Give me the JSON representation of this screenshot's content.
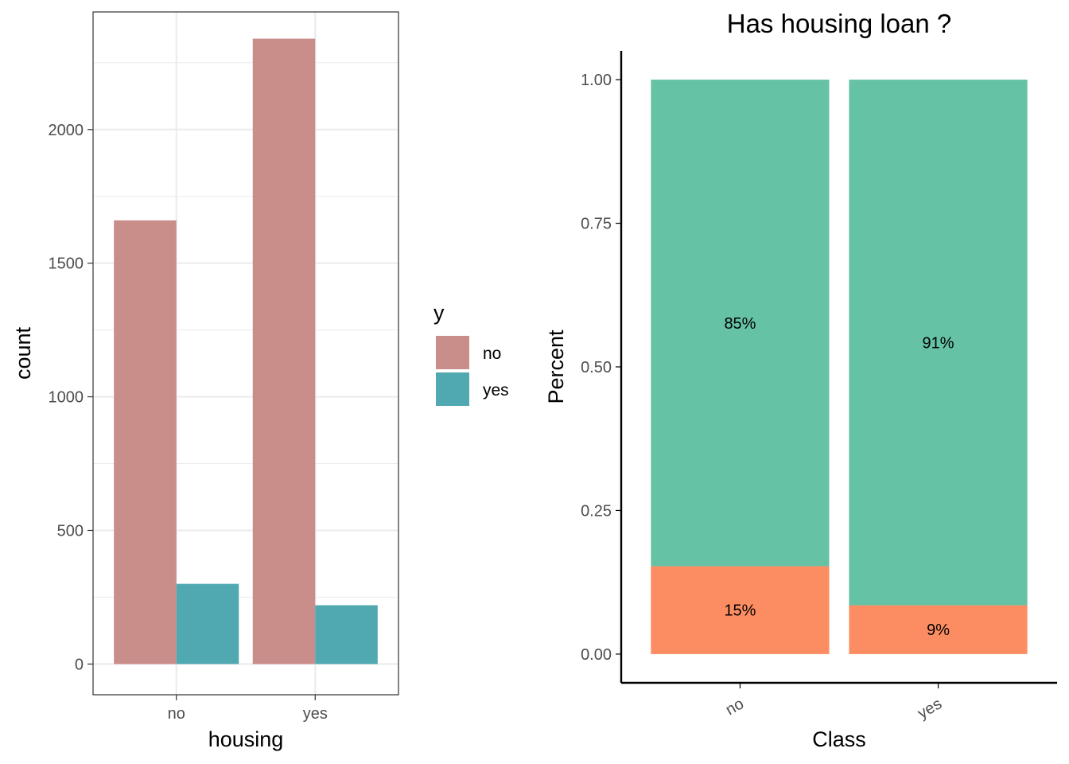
{
  "chart_data": [
    {
      "type": "bar",
      "position": "dodge",
      "xlabel": "housing",
      "ylabel": "count",
      "categories": [
        "no",
        "yes"
      ],
      "series": [
        {
          "name": "no",
          "values": [
            1660,
            2340
          ]
        },
        {
          "name": "yes",
          "values": [
            300,
            220
          ]
        }
      ],
      "ylim": [
        -115,
        2440
      ],
      "yticks": [
        0,
        500,
        1000,
        1500,
        2000
      ],
      "ytick_labels": [
        "0",
        "500",
        "1000",
        "1500",
        "2000"
      ],
      "grid": true,
      "legend": {
        "title": "y",
        "placement": "right",
        "entries": [
          "no",
          "yes"
        ]
      },
      "colors": {
        "no": "#c98d8a",
        "yes": "#50a9b0"
      }
    },
    {
      "type": "bar",
      "position": "fill",
      "title": "Has housing loan ?",
      "xlabel": "Class",
      "ylabel": "Percent",
      "categories": [
        "no",
        "yes"
      ],
      "series": [
        {
          "values": [
            0.153,
            0.085
          ],
          "labels": [
            "15%",
            "9%"
          ]
        },
        {
          "values": [
            0.847,
            0.915
          ],
          "labels": [
            "85%",
            "91%"
          ]
        }
      ],
      "ylim": [
        -0.05,
        1.05
      ],
      "yticks": [
        0,
        0.25,
        0.5,
        0.75,
        1
      ],
      "ytick_labels": [
        "0.00",
        "0.25",
        "0.50",
        "0.75",
        "1.00"
      ],
      "grid": false,
      "colors": {
        "bottom": "#fc8d62",
        "top": "#66c2a5"
      }
    }
  ]
}
